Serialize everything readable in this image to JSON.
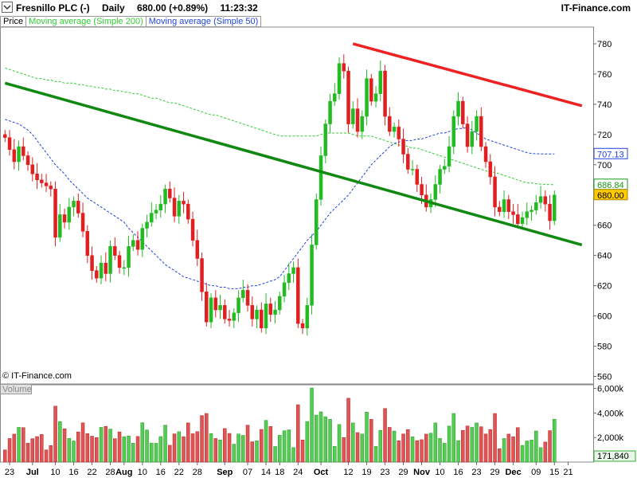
{
  "header": {
    "symbol": "Fresnillo PLC (-)",
    "period": "Daily",
    "last_change": "680.00 (+0.89%)",
    "time": "11:23:32",
    "brand": "IT-Finance.com"
  },
  "legend": {
    "price": "Price",
    "ma200": "Moving average (Simple 200)",
    "ma50": "Moving average (Simple 50)"
  },
  "watermark": "© IT-Finance.com",
  "volume_label": "Volume",
  "colors": {
    "up": "#22bb22",
    "down": "#e02020",
    "ma200": "#33cc33",
    "ma50": "#2244dd",
    "trend_support": "#118811",
    "trend_resistance": "#ee2222",
    "ma50_tag": "#2244dd",
    "ma200_tag": "#119911",
    "last_tag_bg": "#ffcc00"
  },
  "chart_data": {
    "type": "candlestick",
    "price_axis": {
      "ticks": [
        560,
        580,
        600,
        620,
        640,
        660,
        680,
        700,
        720,
        740,
        760,
        780
      ],
      "range": [
        555,
        790
      ]
    },
    "price_tags": [
      {
        "label": "707.13",
        "value": 707.13,
        "kind": "ma50"
      },
      {
        "label": "686.84",
        "value": 686.84,
        "kind": "ma200"
      },
      {
        "label": "680.00",
        "value": 680.0,
        "kind": "last"
      }
    ],
    "volume_axis": {
      "ticks": [
        "2,000k",
        "4,000k",
        "6,000k"
      ],
      "tick_values": [
        2000,
        4000,
        6000
      ],
      "range": [
        0,
        6300
      ],
      "last_label": "171,840"
    },
    "x_axis": [
      {
        "label": "23",
        "bar": 1
      },
      {
        "label": "Jul",
        "bar": 6
      },
      {
        "label": "10",
        "bar": 11
      },
      {
        "label": "16",
        "bar": 15
      },
      {
        "label": "22",
        "bar": 19
      },
      {
        "label": "28",
        "bar": 23
      },
      {
        "label": "Aug",
        "bar": 26
      },
      {
        "label": "10",
        "bar": 30
      },
      {
        "label": "16",
        "bar": 34
      },
      {
        "label": "22",
        "bar": 38
      },
      {
        "label": "28",
        "bar": 42
      },
      {
        "label": "Sep",
        "bar": 48
      },
      {
        "label": "07",
        "bar": 53
      },
      {
        "label": "14",
        "bar": 57
      },
      {
        "label": "18",
        "bar": 60
      },
      {
        "label": "24",
        "bar": 64
      },
      {
        "label": "Oct",
        "bar": 69
      },
      {
        "label": "12",
        "bar": 75
      },
      {
        "label": "19",
        "bar": 79
      },
      {
        "label": "23",
        "bar": 83
      },
      {
        "label": "29",
        "bar": 87
      },
      {
        "label": "Nov",
        "bar": 91
      },
      {
        "label": "10",
        "bar": 95
      },
      {
        "label": "16",
        "bar": 99
      },
      {
        "label": "23",
        "bar": 103
      },
      {
        "label": "29",
        "bar": 107
      },
      {
        "label": "Dec",
        "bar": 111
      },
      {
        "label": "09",
        "bar": 116
      },
      {
        "label": "15",
        "bar": 120
      },
      {
        "label": "21",
        "bar": 123
      }
    ],
    "closes": [
      718,
      710,
      702,
      712,
      706,
      700,
      694,
      690,
      688,
      686,
      684,
      652,
      667,
      662,
      672,
      676,
      668,
      656,
      640,
      630,
      625,
      635,
      628,
      646,
      640,
      632,
      632,
      646,
      650,
      644,
      658,
      662,
      668,
      670,
      674,
      684,
      678,
      666,
      676,
      674,
      664,
      650,
      638,
      616,
      596,
      612,
      604,
      607,
      598,
      597,
      602,
      612,
      617,
      607,
      598,
      604,
      592,
      608,
      601,
      604,
      613,
      622,
      628,
      632,
      595,
      592,
      607,
      647,
      677,
      706,
      727,
      742,
      747,
      767,
      762,
      727,
      737,
      722,
      732,
      757,
      742,
      747,
      762,
      732,
      722,
      725,
      717,
      707,
      697,
      697,
      687,
      680,
      672,
      677,
      687,
      697,
      699,
      712,
      732,
      742,
      727,
      712,
      722,
      732,
      712,
      702,
      692,
      672,
      669,
      677,
      669,
      667,
      661,
      665,
      669,
      670,
      675,
      679,
      674,
      663,
      680
    ],
    "ma50": [
      730,
      729,
      728,
      727,
      725,
      723,
      720,
      716,
      712,
      708,
      704,
      700,
      697,
      694,
      690,
      687,
      684,
      681,
      678,
      676,
      674,
      672,
      670,
      668,
      666,
      664,
      662,
      658,
      655,
      652,
      649,
      646,
      643,
      640,
      637,
      634,
      632,
      630,
      628,
      626,
      625,
      624,
      623,
      622,
      621,
      620,
      620,
      619,
      619,
      618,
      618,
      618,
      619,
      619,
      620,
      620,
      621,
      622,
      623,
      624,
      626,
      630,
      634,
      638,
      642,
      646,
      650,
      653,
      656,
      660,
      664,
      668,
      671,
      674,
      677,
      680,
      684,
      688,
      692,
      696,
      700,
      703,
      706,
      709,
      712,
      714,
      715,
      716,
      716,
      716,
      717,
      717,
      718,
      719,
      720,
      721,
      721,
      722,
      723,
      724,
      724,
      725,
      723,
      721,
      719,
      717,
      716,
      715,
      714,
      713,
      712,
      711,
      710,
      709,
      708,
      707.5,
      707.3,
      707.2,
      707.1,
      707.1,
      707.13
    ],
    "ma200": [
      764,
      763,
      762,
      761,
      760,
      759,
      758,
      757,
      757,
      756,
      756,
      755,
      755,
      754,
      754,
      754,
      753,
      753,
      752,
      752,
      751,
      751,
      750,
      750,
      749,
      749,
      748,
      748,
      747,
      747,
      746,
      745,
      744,
      744,
      743,
      742,
      741,
      741,
      740,
      739,
      738,
      737,
      736,
      735,
      734,
      733,
      733,
      732,
      731,
      730,
      729,
      728,
      727,
      726,
      725,
      724,
      723,
      722,
      721,
      720,
      719,
      719,
      719,
      719,
      719,
      719,
      719,
      719,
      719,
      720,
      721,
      721,
      721,
      721,
      721,
      721,
      720,
      719,
      719,
      719,
      719,
      718,
      717,
      716,
      715,
      714,
      713,
      713,
      712,
      711,
      711,
      710,
      709,
      708,
      707,
      706,
      705,
      704,
      703,
      702,
      701,
      700,
      699,
      698,
      697,
      696,
      695,
      695,
      694,
      693,
      692,
      691,
      690,
      689,
      688,
      688,
      687.5,
      687.2,
      687,
      686.9,
      686.84
    ],
    "trendlines": [
      {
        "name": "support",
        "from": {
          "bar": 0,
          "price": 754
        },
        "to": {
          "bar": 126,
          "price": 647
        }
      },
      {
        "name": "resistance",
        "from": {
          "bar": 76,
          "price": 780
        },
        "to": {
          "bar": 126,
          "price": 739
        }
      }
    ]
  }
}
